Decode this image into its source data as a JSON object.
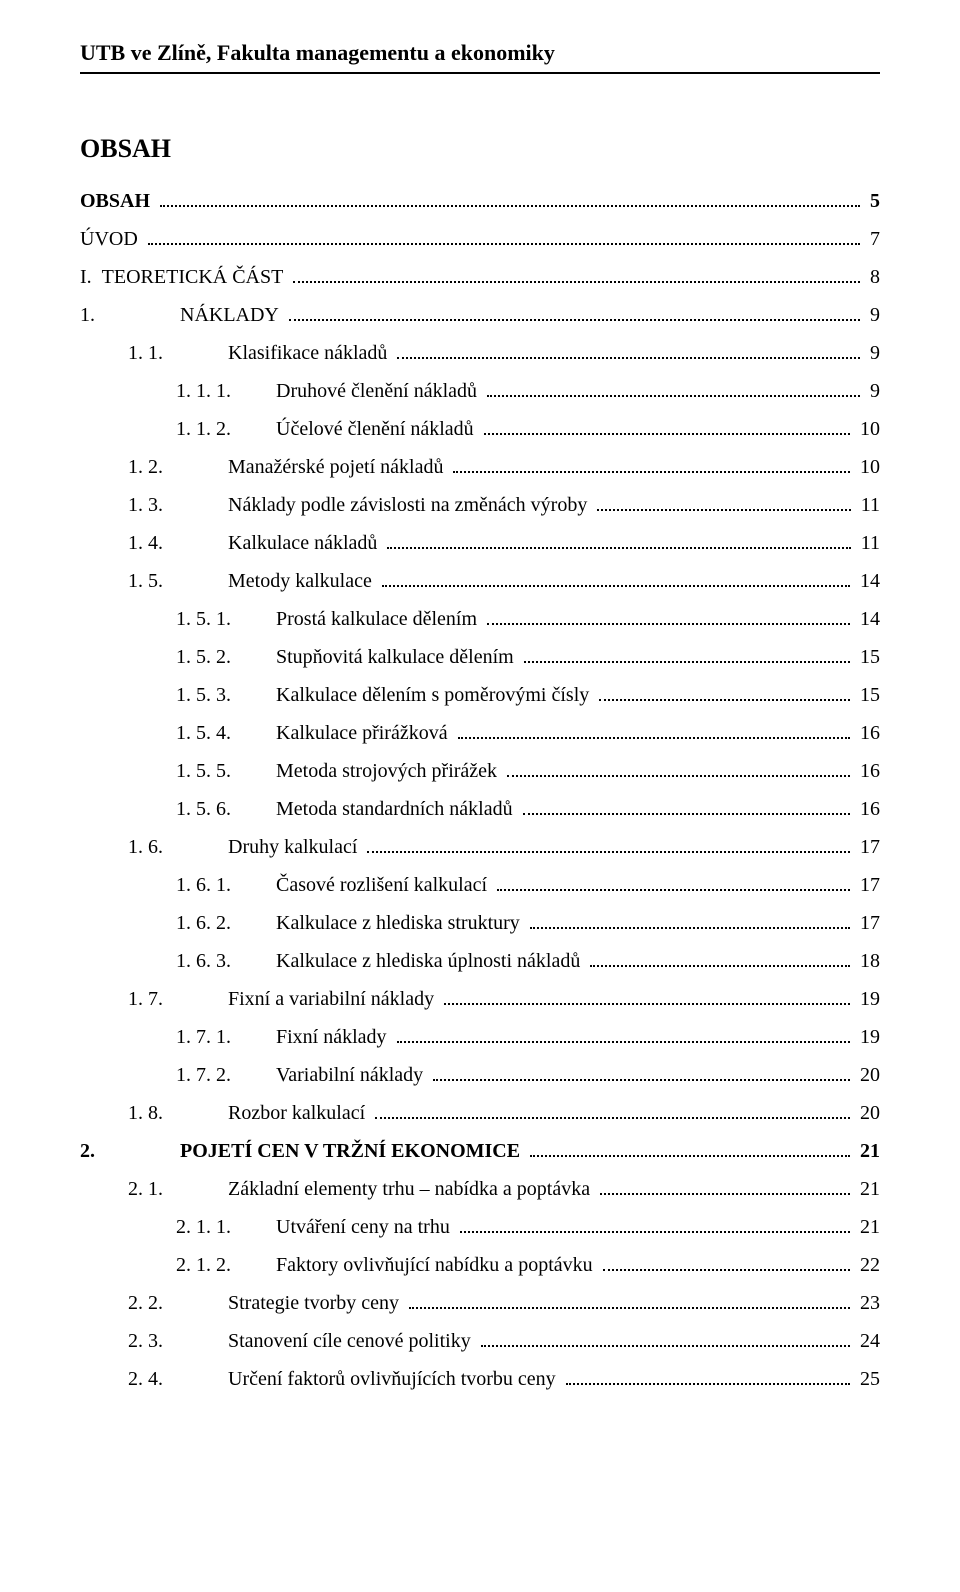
{
  "header": "UTB ve Zlíně, Fakulta managementu a ekonomiky",
  "title": "OBSAH",
  "font": {
    "family": "Times New Roman",
    "title_size_pt": 26,
    "body_size_pt": 20
  },
  "colors": {
    "text": "#000000",
    "background": "#ffffff",
    "rule": "#000000"
  },
  "toc": [
    {
      "num": "",
      "label": "OBSAH",
      "page": "5",
      "indent": 0,
      "bold": true,
      "no_num": true
    },
    {
      "num": "",
      "label": "ÚVOD",
      "page": "7",
      "indent": 0,
      "bold": false,
      "no_num": true
    },
    {
      "num": "I.",
      "label": "TEORETICKÁ ČÁST",
      "page": "8",
      "indent": 0,
      "bold": false
    },
    {
      "num": "1.",
      "label": "NÁKLADY",
      "page": "9",
      "indent": 1,
      "bold": false
    },
    {
      "num": "1. 1.",
      "label": "Klasifikace nákladů",
      "page": "9",
      "indent": 2,
      "bold": false
    },
    {
      "num": "1. 1. 1.",
      "label": "Druhové členění nákladů",
      "page": "9",
      "indent": 3,
      "bold": false
    },
    {
      "num": "1. 1. 2.",
      "label": "Účelové členění nákladů",
      "page": "10",
      "indent": 3,
      "bold": false
    },
    {
      "num": "1. 2.",
      "label": "Manažérské pojetí nákladů",
      "page": "10",
      "indent": 2,
      "bold": false
    },
    {
      "num": "1. 3.",
      "label": "Náklady podle závislosti na změnách výroby",
      "page": "11",
      "indent": 2,
      "bold": false
    },
    {
      "num": "1. 4.",
      "label": "Kalkulace nákladů",
      "page": "11",
      "indent": 2,
      "bold": false
    },
    {
      "num": "1. 5.",
      "label": "Metody kalkulace",
      "page": "14",
      "indent": 2,
      "bold": false
    },
    {
      "num": "1. 5. 1.",
      "label": "Prostá kalkulace dělením",
      "page": "14",
      "indent": 3,
      "bold": false
    },
    {
      "num": "1. 5. 2.",
      "label": "Stupňovitá kalkulace dělením",
      "page": "15",
      "indent": 3,
      "bold": false
    },
    {
      "num": "1. 5. 3.",
      "label": "Kalkulace dělením s poměrovými čísly",
      "page": "15",
      "indent": 3,
      "bold": false
    },
    {
      "num": "1. 5. 4.",
      "label": "Kalkulace přirážková",
      "page": "16",
      "indent": 3,
      "bold": false
    },
    {
      "num": "1. 5. 5.",
      "label": "Metoda strojových přirážek",
      "page": "16",
      "indent": 3,
      "bold": false
    },
    {
      "num": "1. 5. 6.",
      "label": "Metoda standardních nákladů",
      "page": "16",
      "indent": 3,
      "bold": false
    },
    {
      "num": "1. 6.",
      "label": "Druhy kalkulací",
      "page": "17",
      "indent": 2,
      "bold": false
    },
    {
      "num": "1. 6. 1.",
      "label": "Časové rozlišení kalkulací",
      "page": "17",
      "indent": 3,
      "bold": false
    },
    {
      "num": "1. 6. 2.",
      "label": "Kalkulace z hlediska struktury",
      "page": "17",
      "indent": 3,
      "bold": false
    },
    {
      "num": "1. 6. 3.",
      "label": "Kalkulace z hlediska úplnosti nákladů",
      "page": "18",
      "indent": 3,
      "bold": false
    },
    {
      "num": "1. 7.",
      "label": "Fixní a variabilní náklady",
      "page": "19",
      "indent": 2,
      "bold": false
    },
    {
      "num": "1. 7. 1.",
      "label": "Fixní náklady",
      "page": "19",
      "indent": 3,
      "bold": false
    },
    {
      "num": "1. 7. 2.",
      "label": "Variabilní náklady",
      "page": "20",
      "indent": 3,
      "bold": false
    },
    {
      "num": "1. 8.",
      "label": "Rozbor kalkulací",
      "page": "20",
      "indent": 2,
      "bold": false
    },
    {
      "num": "2.",
      "label": "POJETÍ CEN V TRŽNÍ EKONOMICE",
      "page": "21",
      "indent": 1,
      "bold": true
    },
    {
      "num": "2. 1.",
      "label": "Základní elementy trhu – nabídka a poptávka",
      "page": "21",
      "indent": 2,
      "bold": false
    },
    {
      "num": "2. 1. 1.",
      "label": "Utváření ceny na trhu",
      "page": "21",
      "indent": 3,
      "bold": false
    },
    {
      "num": "2. 1. 2.",
      "label": "Faktory ovlivňující nabídku a poptávku",
      "page": "22",
      "indent": 3,
      "bold": false
    },
    {
      "num": "2. 2.",
      "label": "Strategie tvorby ceny",
      "page": "23",
      "indent": 2,
      "bold": false
    },
    {
      "num": "2. 3.",
      "label": "Stanovení cíle cenové politiky",
      "page": "24",
      "indent": 2,
      "bold": false
    },
    {
      "num": "2. 4.",
      "label": "Určení faktorů ovlivňujících tvorbu ceny",
      "page": "25",
      "indent": 2,
      "bold": false
    }
  ]
}
